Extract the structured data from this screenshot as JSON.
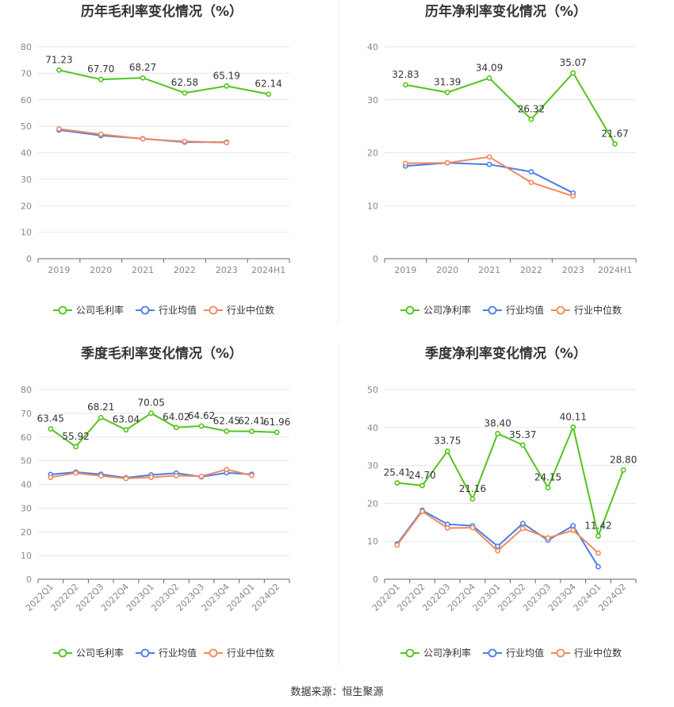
{
  "colors": {
    "company": "#52c41a",
    "industry_avg": "#4a7ee8",
    "industry_median": "#f08a5d"
  },
  "legend": {
    "gross": [
      "公司毛利率",
      "行业均值",
      "行业中位数"
    ],
    "net": [
      "公司净利率",
      "行业均值",
      "行业中位数"
    ]
  },
  "source": "数据来源：恒生聚源",
  "chart_data": [
    {
      "type": "line",
      "title": "历年毛利率变化情况（%）",
      "categories": [
        "2019",
        "2020",
        "2021",
        "2022",
        "2023",
        "2024H1"
      ],
      "ylim": [
        0,
        80
      ],
      "yticks": [
        0,
        10,
        20,
        30,
        40,
        50,
        60,
        70,
        80
      ],
      "rotate_x": false,
      "legend_position": "bottom",
      "series": [
        {
          "name": "公司毛利率",
          "values": [
            71.23,
            67.7,
            68.27,
            62.58,
            65.19,
            62.14
          ],
          "labels": true
        },
        {
          "name": "行业均值",
          "values": [
            48.6,
            46.5,
            45.3,
            44.0,
            44.0,
            null
          ]
        },
        {
          "name": "行业中位数",
          "values": [
            49.0,
            47.0,
            45.2,
            44.3,
            43.8,
            null
          ]
        }
      ]
    },
    {
      "type": "line",
      "title": "历年净利率变化情况（%）",
      "categories": [
        "2019",
        "2020",
        "2021",
        "2022",
        "2023",
        "2024H1"
      ],
      "ylim": [
        0,
        40
      ],
      "yticks": [
        0,
        10,
        20,
        30,
        40
      ],
      "rotate_x": false,
      "legend_position": "bottom",
      "series": [
        {
          "name": "公司净利率",
          "values": [
            32.83,
            31.39,
            34.09,
            26.32,
            35.07,
            21.67
          ],
          "labels": true
        },
        {
          "name": "行业均值",
          "values": [
            17.5,
            18.1,
            17.8,
            16.4,
            12.4,
            null
          ]
        },
        {
          "name": "行业中位数",
          "values": [
            18.0,
            18.1,
            19.2,
            14.4,
            11.8,
            null
          ]
        }
      ]
    },
    {
      "type": "line",
      "title": "季度毛利率变化情况（%）",
      "categories": [
        "2022Q1",
        "2022Q2",
        "2022Q3",
        "2022Q4",
        "2023Q1",
        "2023Q2",
        "2023Q3",
        "2023Q4",
        "2024Q1",
        "2024Q2"
      ],
      "ylim": [
        0,
        80
      ],
      "yticks": [
        0,
        10,
        20,
        30,
        40,
        50,
        60,
        70,
        80
      ],
      "rotate_x": true,
      "legend_position": "bottom",
      "series": [
        {
          "name": "公司毛利率",
          "values": [
            63.45,
            55.92,
            68.21,
            63.04,
            70.05,
            64.02,
            64.62,
            62.45,
            62.41,
            61.96
          ],
          "labels": true
        },
        {
          "name": "行业均值",
          "values": [
            44.2,
            45.2,
            44.3,
            42.8,
            44.0,
            44.8,
            43.2,
            44.9,
            44.3,
            null
          ]
        },
        {
          "name": "行业中位数",
          "values": [
            43.0,
            44.8,
            43.6,
            42.5,
            43.0,
            43.7,
            43.4,
            46.3,
            43.8,
            null
          ]
        }
      ]
    },
    {
      "type": "line",
      "title": "季度净利率变化情况（%）",
      "categories": [
        "2022Q1",
        "2022Q2",
        "2022Q3",
        "2022Q4",
        "2023Q1",
        "2023Q2",
        "2023Q3",
        "2023Q4",
        "2024Q1",
        "2024Q2"
      ],
      "ylim": [
        0,
        50
      ],
      "yticks": [
        0,
        10,
        20,
        30,
        40,
        50
      ],
      "rotate_x": true,
      "legend_position": "bottom",
      "series": [
        {
          "name": "公司净利率",
          "values": [
            25.41,
            24.7,
            33.75,
            21.16,
            38.4,
            35.37,
            24.15,
            40.11,
            11.42,
            28.8
          ],
          "labels": true
        },
        {
          "name": "行业均值",
          "values": [
            9.3,
            18.2,
            14.5,
            14.1,
            8.7,
            14.7,
            10.3,
            14.1,
            3.3,
            null
          ]
        },
        {
          "name": "行业中位数",
          "values": [
            9.0,
            17.9,
            13.5,
            13.6,
            7.5,
            13.4,
            10.9,
            12.9,
            6.9,
            null
          ]
        }
      ]
    }
  ]
}
